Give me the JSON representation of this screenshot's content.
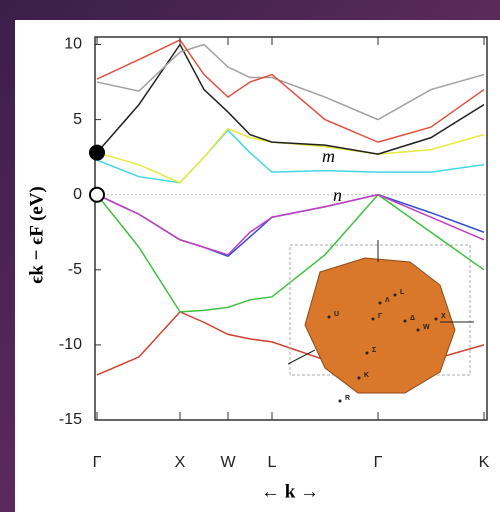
{
  "chart_data": {
    "type": "line",
    "y_label": "ϵk − ϵF (eV)",
    "x_label": "← k →",
    "x": [
      0,
      0.42,
      0.83,
      1.07,
      1.31,
      1.53,
      1.75,
      2.28,
      2.81,
      3.34,
      3.87
    ],
    "xlim": [
      -0.02,
      3.9
    ],
    "xticks": [
      {
        "value": 0,
        "label": "Γ"
      },
      {
        "value": 0.83,
        "label": "X"
      },
      {
        "value": 1.31,
        "label": "W"
      },
      {
        "value": 1.75,
        "label": "L"
      },
      {
        "value": 2.81,
        "label": "Γ"
      },
      {
        "value": 3.87,
        "label": "K"
      }
    ],
    "ylim": [
      -15,
      10.5
    ],
    "yticks": [
      -15,
      -10,
      -5,
      0,
      5,
      10
    ],
    "fermi_level": 0,
    "series": [
      {
        "color": "#d04030",
        "values": [
          -12,
          -10.8,
          -7.8,
          -8.5,
          -9.3,
          -9.6,
          -9.8,
          -11,
          -12,
          -11,
          -10
        ]
      },
      {
        "color": "#40c040",
        "values": [
          0,
          -3.5,
          -7.8,
          -7.7,
          -7.5,
          -7,
          -6.8,
          -4,
          0,
          -2.5,
          -5
        ]
      },
      {
        "color": "#3050d0",
        "values": [
          0,
          -1.3,
          -3,
          -3.5,
          -4.1,
          -2.8,
          -1.5,
          -0.8,
          0,
          -1.2,
          -2.5
        ]
      },
      {
        "color": "#c040c0",
        "values": [
          0,
          -1.3,
          -3,
          -3.5,
          -4,
          -2.5,
          -1.5,
          -0.8,
          0,
          -1.5,
          -3
        ]
      },
      {
        "color": "#40d8e0",
        "values": [
          2.3,
          1.2,
          0.8,
          2.5,
          4.3,
          2.8,
          1.5,
          1.6,
          1.5,
          1.5,
          2
        ]
      },
      {
        "color": "#e8e840",
        "values": [
          2.8,
          2,
          0.8,
          2.5,
          4.4,
          3.8,
          3.5,
          3.2,
          2.7,
          3,
          4
        ]
      },
      {
        "color": "#202020",
        "values": [
          2.8,
          6,
          10,
          7,
          5.5,
          4,
          3.5,
          3.3,
          2.7,
          3.8,
          6
        ]
      },
      {
        "color": "#a0a0a0",
        "values": [
          7.5,
          6.9,
          9.5,
          10,
          8.5,
          7.8,
          7.8,
          6.5,
          5,
          7,
          8
        ]
      },
      {
        "color": "#e05040",
        "values": [
          7.7,
          9,
          10.3,
          8,
          6.5,
          7.5,
          8,
          5,
          3.5,
          4.5,
          7
        ]
      }
    ],
    "points": [
      {
        "x": 0,
        "y": 2.8,
        "filled": true
      },
      {
        "x": 0,
        "y": 0,
        "filled": false
      }
    ],
    "annotations": [
      {
        "text": "m",
        "x": 2.28,
        "y": 2.3
      },
      {
        "text": "n",
        "x": 2.28,
        "y": -0.3
      }
    ],
    "inset_labels": [
      "U",
      "L",
      "Γ",
      "Λ",
      "Δ",
      "W",
      "X",
      "Σ",
      "K",
      "R"
    ]
  }
}
